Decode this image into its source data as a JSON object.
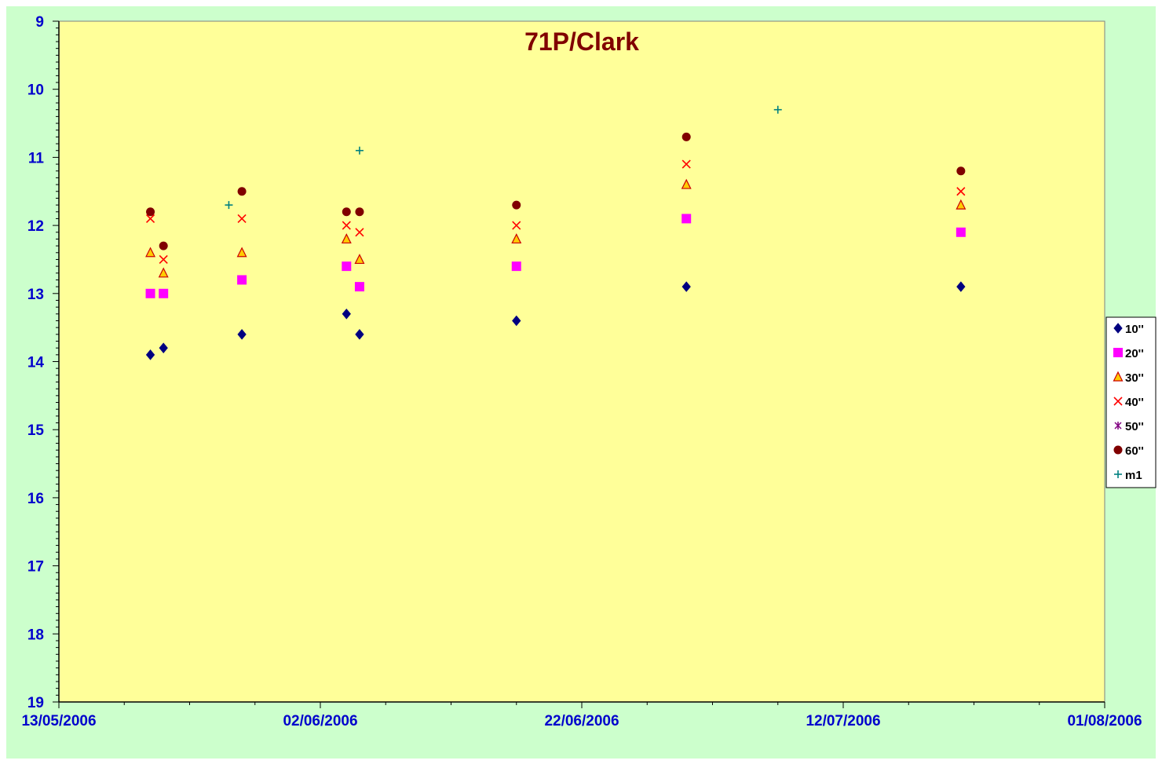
{
  "chart_data": {
    "type": "scatter",
    "title": "71P/Clark",
    "xlabel": "",
    "ylabel": "",
    "x_range": [
      "13/05/2006",
      "01/08/2006"
    ],
    "x_ticks": [
      "13/05/2006",
      "02/06/2006",
      "22/06/2006",
      "12/07/2006",
      "01/08/2006"
    ],
    "y_range": [
      9,
      19
    ],
    "y_reversed": true,
    "y_ticks": [
      "9",
      "10",
      "11",
      "12",
      "13",
      "14",
      "15",
      "16",
      "17",
      "18",
      "19"
    ],
    "grid": false,
    "legend_position": "right",
    "plot_background": "#ffff99",
    "chart_background": "#ccffcc",
    "series": [
      {
        "name": "10''",
        "marker": "diamond",
        "color": "#000080",
        "points": [
          {
            "x": "20/05/2006",
            "y": 13.9
          },
          {
            "x": "21/05/2006",
            "y": 13.8
          },
          {
            "x": "27/05/2006",
            "y": 13.6
          },
          {
            "x": "04/06/2006",
            "y": 13.3
          },
          {
            "x": "05/06/2006",
            "y": 13.6
          },
          {
            "x": "17/06/2006",
            "y": 13.4
          },
          {
            "x": "30/06/2006",
            "y": 12.9
          },
          {
            "x": "21/07/2006",
            "y": 12.9
          }
        ]
      },
      {
        "name": "20''",
        "marker": "square",
        "color": "#ff00ff",
        "points": [
          {
            "x": "20/05/2006",
            "y": 13.0
          },
          {
            "x": "21/05/2006",
            "y": 13.0
          },
          {
            "x": "27/05/2006",
            "y": 12.8
          },
          {
            "x": "04/06/2006",
            "y": 12.6
          },
          {
            "x": "05/06/2006",
            "y": 12.9
          },
          {
            "x": "17/06/2006",
            "y": 12.6
          },
          {
            "x": "30/06/2006",
            "y": 11.9
          },
          {
            "x": "21/07/2006",
            "y": 12.1
          }
        ]
      },
      {
        "name": "30''",
        "marker": "triangle",
        "color": "#cc0000",
        "fill": "#ffcc00",
        "points": [
          {
            "x": "20/05/2006",
            "y": 12.4
          },
          {
            "x": "21/05/2006",
            "y": 12.7
          },
          {
            "x": "27/05/2006",
            "y": 12.4
          },
          {
            "x": "04/06/2006",
            "y": 12.2
          },
          {
            "x": "05/06/2006",
            "y": 12.5
          },
          {
            "x": "17/06/2006",
            "y": 12.2
          },
          {
            "x": "30/06/2006",
            "y": 11.4
          },
          {
            "x": "21/07/2006",
            "y": 11.7
          }
        ]
      },
      {
        "name": "40''",
        "marker": "x",
        "color": "#ff0000",
        "points": [
          {
            "x": "20/05/2006",
            "y": 11.9
          },
          {
            "x": "21/05/2006",
            "y": 12.5
          },
          {
            "x": "27/05/2006",
            "y": 11.9
          },
          {
            "x": "04/06/2006",
            "y": 12.0
          },
          {
            "x": "05/06/2006",
            "y": 12.1
          },
          {
            "x": "17/06/2006",
            "y": 12.0
          },
          {
            "x": "30/06/2006",
            "y": 11.1
          },
          {
            "x": "21/07/2006",
            "y": 11.5
          }
        ]
      },
      {
        "name": "50''",
        "marker": "star",
        "color": "#800080",
        "points": []
      },
      {
        "name": "60''",
        "marker": "circle",
        "color": "#800000",
        "points": [
          {
            "x": "20/05/2006",
            "y": 11.8
          },
          {
            "x": "21/05/2006",
            "y": 12.3
          },
          {
            "x": "27/05/2006",
            "y": 11.5
          },
          {
            "x": "04/06/2006",
            "y": 11.8
          },
          {
            "x": "05/06/2006",
            "y": 11.8
          },
          {
            "x": "17/06/2006",
            "y": 11.7
          },
          {
            "x": "30/06/2006",
            "y": 10.7
          },
          {
            "x": "21/07/2006",
            "y": 11.2
          }
        ]
      },
      {
        "name": "m1",
        "marker": "plus",
        "color": "#008080",
        "points": [
          {
            "x": "26/05/2006",
            "y": 11.7
          },
          {
            "x": "05/06/2006",
            "y": 10.9
          },
          {
            "x": "07/07/2006",
            "y": 10.3
          }
        ]
      }
    ]
  }
}
